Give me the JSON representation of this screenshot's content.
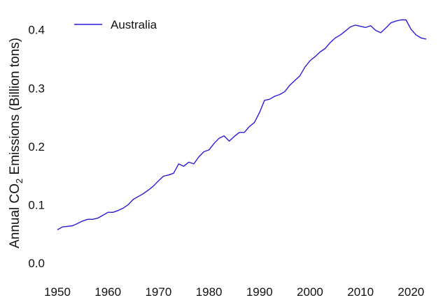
{
  "chart_data": {
    "type": "line",
    "title": "",
    "xlabel": "",
    "ylabel": {
      "pre": "Annual CO",
      "sub": "2",
      "post": " Emissions (Billion tons)"
    },
    "xlim": [
      1950,
      2023
    ],
    "ylim": [
      0.0,
      0.42
    ],
    "x_ticks": [
      "1950",
      "1960",
      "1970",
      "1980",
      "1990",
      "2000",
      "2010",
      "2020"
    ],
    "y_ticks": [
      "0.0",
      "0.1",
      "0.2",
      "0.3",
      "0.4"
    ],
    "grid": false,
    "legend": {
      "placement": "top-left",
      "entries": [
        "Australia"
      ]
    },
    "series": [
      {
        "name": "Australia",
        "color": "#2a1ad8",
        "x": [
          1950,
          1951,
          1952,
          1953,
          1954,
          1955,
          1956,
          1957,
          1958,
          1959,
          1960,
          1961,
          1962,
          1963,
          1964,
          1965,
          1966,
          1967,
          1968,
          1969,
          1970,
          1971,
          1972,
          1973,
          1974,
          1975,
          1976,
          1977,
          1978,
          1979,
          1980,
          1981,
          1982,
          1983,
          1984,
          1985,
          1986,
          1987,
          1988,
          1989,
          1990,
          1991,
          1992,
          1993,
          1994,
          1995,
          1996,
          1997,
          1998,
          1999,
          2000,
          2001,
          2002,
          2003,
          2004,
          2005,
          2006,
          2007,
          2008,
          2009,
          2010,
          2011,
          2012,
          2013,
          2014,
          2015,
          2016,
          2017,
          2018,
          2019,
          2020,
          2021,
          2022,
          2023
        ],
        "values": [
          0.057,
          0.062,
          0.063,
          0.064,
          0.068,
          0.072,
          0.075,
          0.075,
          0.077,
          0.082,
          0.087,
          0.087,
          0.09,
          0.094,
          0.1,
          0.109,
          0.114,
          0.119,
          0.125,
          0.132,
          0.141,
          0.149,
          0.151,
          0.154,
          0.17,
          0.166,
          0.173,
          0.17,
          0.182,
          0.191,
          0.194,
          0.205,
          0.214,
          0.218,
          0.209,
          0.217,
          0.224,
          0.224,
          0.234,
          0.241,
          0.258,
          0.279,
          0.281,
          0.286,
          0.289,
          0.294,
          0.305,
          0.313,
          0.321,
          0.336,
          0.347,
          0.354,
          0.362,
          0.368,
          0.378,
          0.386,
          0.391,
          0.398,
          0.405,
          0.408,
          0.406,
          0.404,
          0.407,
          0.399,
          0.395,
          0.403,
          0.412,
          0.415,
          0.417,
          0.417,
          0.401,
          0.391,
          0.386,
          0.384
        ]
      }
    ]
  }
}
